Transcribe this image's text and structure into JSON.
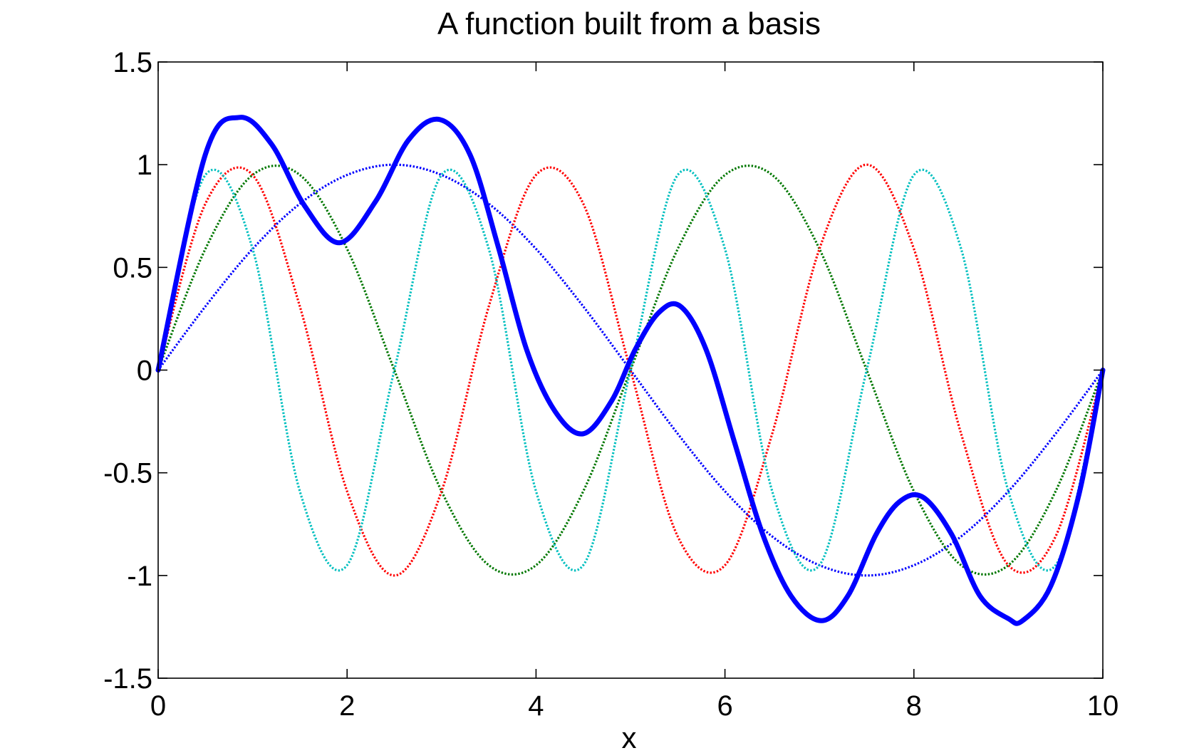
{
  "chart_data": {
    "type": "line",
    "title": "A function built from a basis",
    "xlabel": "x",
    "ylabel": "",
    "xlim": [
      0,
      10
    ],
    "ylim": [
      -1.5,
      1.5
    ],
    "xticks": [
      0,
      2,
      4,
      6,
      8,
      10
    ],
    "yticks": [
      1.5,
      1,
      0.5,
      0,
      -0.5,
      -1,
      -1.5
    ],
    "xtick_labels": [
      "0",
      "2",
      "4",
      "6",
      "8",
      "10"
    ],
    "ytick_labels": [
      "1.5",
      "1",
      "0.5",
      "0",
      "-0.5",
      "-1",
      "-1.5"
    ],
    "grid": false,
    "legend": "none",
    "basis_x": [
      0,
      0.5,
      1,
      1.5,
      2,
      2.5,
      3,
      3.5,
      4,
      4.5,
      5,
      5.5,
      6,
      6.5,
      7,
      7.5,
      8,
      8.5,
      9,
      9.5,
      10
    ],
    "series": [
      {
        "style": "dotted",
        "color": "#0000ff",
        "values": [
          0,
          0.31,
          0.59,
          0.81,
          0.95,
          1.0,
          0.95,
          0.81,
          0.59,
          0.31,
          0,
          -0.31,
          -0.59,
          -0.81,
          -0.95,
          -1.0,
          -0.95,
          -0.81,
          -0.59,
          -0.31,
          0
        ]
      },
      {
        "style": "dotted",
        "color": "#007700",
        "values": [
          0,
          0.59,
          0.95,
          0.95,
          0.59,
          0,
          -0.59,
          -0.95,
          -0.95,
          -0.59,
          0,
          0.59,
          0.95,
          0.95,
          0.59,
          0,
          -0.59,
          -0.95,
          -0.95,
          -0.59,
          0
        ]
      },
      {
        "style": "dotted",
        "color": "#ff0000",
        "values": [
          0,
          0.81,
          0.95,
          0.31,
          -0.59,
          -1.0,
          -0.59,
          0.31,
          0.95,
          0.81,
          0,
          -0.81,
          -0.95,
          -0.31,
          0.59,
          1.0,
          0.59,
          -0.31,
          -0.95,
          -0.81,
          0
        ]
      },
      {
        "style": "dotted",
        "color": "#00bfbf",
        "values": [
          0,
          0.95,
          0.59,
          -0.59,
          -0.95,
          0,
          0.95,
          0.59,
          -0.59,
          -0.95,
          0,
          0.95,
          0.59,
          -0.59,
          -0.95,
          0,
          0.95,
          0.59,
          -0.59,
          -0.95,
          0
        ]
      },
      {
        "style": "solid-thick",
        "color": "#0000ff",
        "x": [
          0,
          0.5,
          0.86,
          1.2,
          1.55,
          1.92,
          2.3,
          2.65,
          2.98,
          3.3,
          3.6,
          3.9,
          4.2,
          4.5,
          4.8,
          5.05,
          5.3,
          5.53,
          5.8,
          6.1,
          6.4,
          6.7,
          7.02,
          7.3,
          7.6,
          7.85,
          8.1,
          8.4,
          8.7,
          9.0,
          9.15,
          9.45,
          9.75,
          10
        ],
        "y": [
          0,
          1.05,
          1.23,
          1.1,
          0.8,
          0.62,
          0.82,
          1.12,
          1.22,
          1.05,
          0.6,
          0.1,
          -0.2,
          -0.31,
          -0.15,
          0.1,
          0.28,
          0.31,
          0.1,
          -0.35,
          -0.8,
          -1.1,
          -1.22,
          -1.1,
          -0.8,
          -0.64,
          -0.62,
          -0.8,
          -1.1,
          -1.21,
          -1.22,
          -1.05,
          -0.6,
          0
        ]
      }
    ]
  }
}
